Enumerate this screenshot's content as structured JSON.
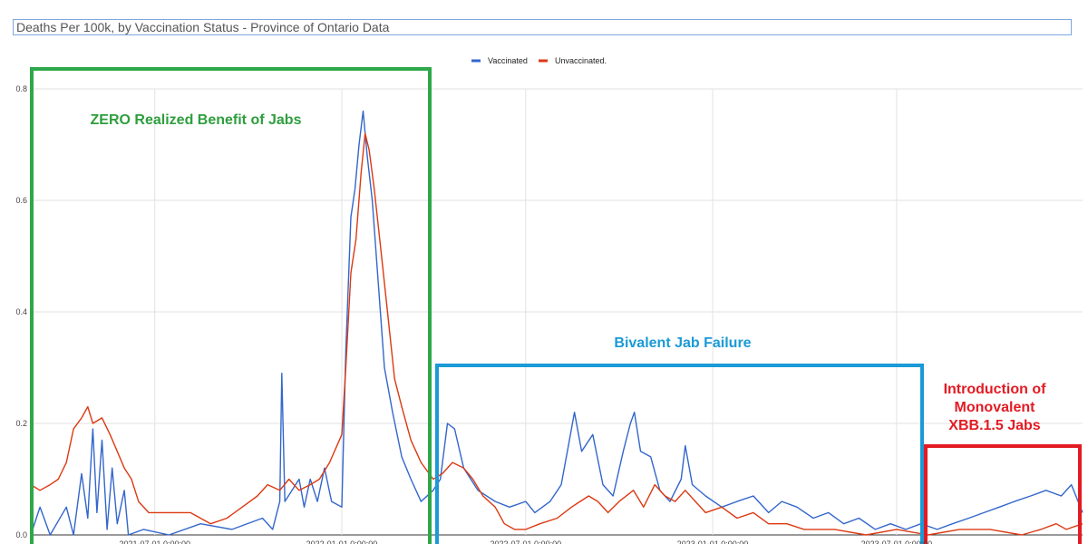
{
  "title": "Deaths Per 100k, by Vaccination Status - Province of Ontario Data",
  "chart_data": {
    "type": "line",
    "ylim": [
      0,
      0.8
    ],
    "yticks": [
      "0.0",
      "0.2",
      "0.4",
      "0.6",
      "0.8"
    ],
    "x_ticks": [
      "2021-07-01 0:00:00",
      "2022-01-01 0:00:00",
      "2022-07-01 0:00:00",
      "2023-01-01 0:00:00",
      "2023-07-01 0:00:00"
    ],
    "x_tick_dates": [
      "2021-07-01",
      "2022-01-01",
      "2022-07-01",
      "2023-01-01",
      "2023-07-01"
    ],
    "x_range": [
      "2021-03-01",
      "2023-12-31"
    ],
    "grid": true,
    "legend_position": "top-center",
    "series": [
      {
        "name": "Vaccinated",
        "color": "#3366cc",
        "points": [
          [
            "2021-03-01",
            0.0
          ],
          [
            "2021-03-10",
            0.05
          ],
          [
            "2021-03-20",
            0.0
          ],
          [
            "2021-04-05",
            0.05
          ],
          [
            "2021-04-12",
            0.0
          ],
          [
            "2021-04-20",
            0.11
          ],
          [
            "2021-04-26",
            0.03
          ],
          [
            "2021-05-01",
            0.19
          ],
          [
            "2021-05-05",
            0.04
          ],
          [
            "2021-05-10",
            0.17
          ],
          [
            "2021-05-15",
            0.01
          ],
          [
            "2021-05-20",
            0.12
          ],
          [
            "2021-05-25",
            0.02
          ],
          [
            "2021-06-01",
            0.08
          ],
          [
            "2021-06-05",
            0.0
          ],
          [
            "2021-06-20",
            0.01
          ],
          [
            "2021-07-15",
            0.0
          ],
          [
            "2021-08-15",
            0.02
          ],
          [
            "2021-09-15",
            0.01
          ],
          [
            "2021-10-15",
            0.03
          ],
          [
            "2021-10-25",
            0.01
          ],
          [
            "2021-11-01",
            0.06
          ],
          [
            "2021-11-03",
            0.29
          ],
          [
            "2021-11-06",
            0.06
          ],
          [
            "2021-11-20",
            0.1
          ],
          [
            "2021-11-25",
            0.05
          ],
          [
            "2021-12-01",
            0.1
          ],
          [
            "2021-12-08",
            0.06
          ],
          [
            "2021-12-15",
            0.12
          ],
          [
            "2021-12-22",
            0.06
          ],
          [
            "2022-01-01",
            0.05
          ],
          [
            "2022-01-05",
            0.33
          ],
          [
            "2022-01-10",
            0.57
          ],
          [
            "2022-01-14",
            0.62
          ],
          [
            "2022-01-18",
            0.7
          ],
          [
            "2022-01-22",
            0.76
          ],
          [
            "2022-01-26",
            0.68
          ],
          [
            "2022-01-31",
            0.6
          ],
          [
            "2022-02-06",
            0.45
          ],
          [
            "2022-02-12",
            0.3
          ],
          [
            "2022-02-20",
            0.22
          ],
          [
            "2022-03-01",
            0.14
          ],
          [
            "2022-03-10",
            0.1
          ],
          [
            "2022-03-20",
            0.06
          ],
          [
            "2022-04-01",
            0.08
          ],
          [
            "2022-04-08",
            0.1
          ],
          [
            "2022-04-15",
            0.2
          ],
          [
            "2022-04-22",
            0.19
          ],
          [
            "2022-05-01",
            0.12
          ],
          [
            "2022-05-15",
            0.08
          ],
          [
            "2022-06-01",
            0.06
          ],
          [
            "2022-06-15",
            0.05
          ],
          [
            "2022-07-01",
            0.06
          ],
          [
            "2022-07-10",
            0.04
          ],
          [
            "2022-07-25",
            0.06
          ],
          [
            "2022-08-05",
            0.09
          ],
          [
            "2022-08-12",
            0.16
          ],
          [
            "2022-08-18",
            0.22
          ],
          [
            "2022-08-25",
            0.15
          ],
          [
            "2022-09-05",
            0.18
          ],
          [
            "2022-09-15",
            0.09
          ],
          [
            "2022-09-25",
            0.07
          ],
          [
            "2022-10-05",
            0.15
          ],
          [
            "2022-10-12",
            0.2
          ],
          [
            "2022-10-16",
            0.22
          ],
          [
            "2022-10-22",
            0.15
          ],
          [
            "2022-11-01",
            0.14
          ],
          [
            "2022-11-10",
            0.08
          ],
          [
            "2022-11-20",
            0.06
          ],
          [
            "2022-12-01",
            0.1
          ],
          [
            "2022-12-05",
            0.16
          ],
          [
            "2022-12-12",
            0.09
          ],
          [
            "2022-12-25",
            0.07
          ],
          [
            "2023-01-10",
            0.05
          ],
          [
            "2023-01-25",
            0.06
          ],
          [
            "2023-02-10",
            0.07
          ],
          [
            "2023-02-25",
            0.04
          ],
          [
            "2023-03-10",
            0.06
          ],
          [
            "2023-03-25",
            0.05
          ],
          [
            "2023-04-10",
            0.03
          ],
          [
            "2023-04-25",
            0.04
          ],
          [
            "2023-05-10",
            0.02
          ],
          [
            "2023-05-25",
            0.03
          ],
          [
            "2023-06-10",
            0.01
          ],
          [
            "2023-06-25",
            0.02
          ],
          [
            "2023-07-10",
            0.01
          ],
          [
            "2023-07-25",
            0.02
          ],
          [
            "2023-08-10",
            0.01
          ],
          [
            "2023-08-25",
            0.02
          ],
          [
            "2023-09-10",
            0.03
          ],
          [
            "2023-09-25",
            0.04
          ],
          [
            "2023-10-10",
            0.05
          ],
          [
            "2023-10-25",
            0.06
          ],
          [
            "2023-11-10",
            0.07
          ],
          [
            "2023-11-25",
            0.08
          ],
          [
            "2023-12-10",
            0.07
          ],
          [
            "2023-12-20",
            0.09
          ],
          [
            "2023-12-31",
            0.04
          ]
        ]
      },
      {
        "name": "Unvaccinated.",
        "color": "#dc3912",
        "points": [
          [
            "2021-03-01",
            0.09
          ],
          [
            "2021-03-10",
            0.08
          ],
          [
            "2021-03-20",
            0.09
          ],
          [
            "2021-03-28",
            0.1
          ],
          [
            "2021-04-05",
            0.13
          ],
          [
            "2021-04-12",
            0.19
          ],
          [
            "2021-04-20",
            0.21
          ],
          [
            "2021-04-26",
            0.23
          ],
          [
            "2021-05-01",
            0.2
          ],
          [
            "2021-05-10",
            0.21
          ],
          [
            "2021-05-18",
            0.18
          ],
          [
            "2021-05-25",
            0.15
          ],
          [
            "2021-06-01",
            0.12
          ],
          [
            "2021-06-08",
            0.1
          ],
          [
            "2021-06-15",
            0.06
          ],
          [
            "2021-06-25",
            0.04
          ],
          [
            "2021-07-15",
            0.04
          ],
          [
            "2021-08-05",
            0.04
          ],
          [
            "2021-08-25",
            0.02
          ],
          [
            "2021-09-10",
            0.03
          ],
          [
            "2021-09-25",
            0.05
          ],
          [
            "2021-10-10",
            0.07
          ],
          [
            "2021-10-20",
            0.09
          ],
          [
            "2021-11-01",
            0.08
          ],
          [
            "2021-11-10",
            0.1
          ],
          [
            "2021-11-20",
            0.08
          ],
          [
            "2021-12-01",
            0.09
          ],
          [
            "2021-12-10",
            0.1
          ],
          [
            "2021-12-20",
            0.13
          ],
          [
            "2022-01-01",
            0.18
          ],
          [
            "2022-01-05",
            0.3
          ],
          [
            "2022-01-10",
            0.47
          ],
          [
            "2022-01-15",
            0.53
          ],
          [
            "2022-01-20",
            0.65
          ],
          [
            "2022-01-24",
            0.72
          ],
          [
            "2022-01-28",
            0.69
          ],
          [
            "2022-02-02",
            0.62
          ],
          [
            "2022-02-08",
            0.52
          ],
          [
            "2022-02-15",
            0.4
          ],
          [
            "2022-02-22",
            0.28
          ],
          [
            "2022-03-01",
            0.23
          ],
          [
            "2022-03-10",
            0.17
          ],
          [
            "2022-03-20",
            0.13
          ],
          [
            "2022-04-01",
            0.1
          ],
          [
            "2022-04-10",
            0.11
          ],
          [
            "2022-04-20",
            0.13
          ],
          [
            "2022-05-01",
            0.12
          ],
          [
            "2022-05-10",
            0.1
          ],
          [
            "2022-05-20",
            0.07
          ],
          [
            "2022-06-01",
            0.05
          ],
          [
            "2022-06-10",
            0.02
          ],
          [
            "2022-06-20",
            0.01
          ],
          [
            "2022-07-01",
            0.01
          ],
          [
            "2022-07-15",
            0.02
          ],
          [
            "2022-08-01",
            0.03
          ],
          [
            "2022-08-15",
            0.05
          ],
          [
            "2022-09-01",
            0.07
          ],
          [
            "2022-09-10",
            0.06
          ],
          [
            "2022-09-20",
            0.04
          ],
          [
            "2022-10-01",
            0.06
          ],
          [
            "2022-10-15",
            0.08
          ],
          [
            "2022-10-25",
            0.05
          ],
          [
            "2022-11-05",
            0.09
          ],
          [
            "2022-11-15",
            0.07
          ],
          [
            "2022-11-25",
            0.06
          ],
          [
            "2022-12-05",
            0.08
          ],
          [
            "2022-12-15",
            0.06
          ],
          [
            "2022-12-25",
            0.04
          ],
          [
            "2023-01-10",
            0.05
          ],
          [
            "2023-01-25",
            0.03
          ],
          [
            "2023-02-10",
            0.04
          ],
          [
            "2023-02-25",
            0.02
          ],
          [
            "2023-03-15",
            0.02
          ],
          [
            "2023-04-01",
            0.01
          ],
          [
            "2023-05-01",
            0.01
          ],
          [
            "2023-06-01",
            0.0
          ],
          [
            "2023-07-01",
            0.01
          ],
          [
            "2023-08-01",
            0.0
          ],
          [
            "2023-09-01",
            0.01
          ],
          [
            "2023-10-01",
            0.01
          ],
          [
            "2023-11-01",
            0.0
          ],
          [
            "2023-11-20",
            0.01
          ],
          [
            "2023-12-05",
            0.02
          ],
          [
            "2023-12-15",
            0.01
          ],
          [
            "2023-12-31",
            0.02
          ]
        ]
      }
    ],
    "annotations": [
      {
        "text": "ZERO Realized Benefit of Jabs",
        "color": "#2e9e3e"
      },
      {
        "text": "Bivalent Jab Failure",
        "color": "#1a9ad6"
      },
      {
        "text": "Introduction of Monovalent XBB.1.5 Jabs",
        "color": "#e21b23",
        "lines": [
          "Introduction of",
          "Monovalent",
          "XBB.1.5 Jabs"
        ]
      }
    ]
  }
}
